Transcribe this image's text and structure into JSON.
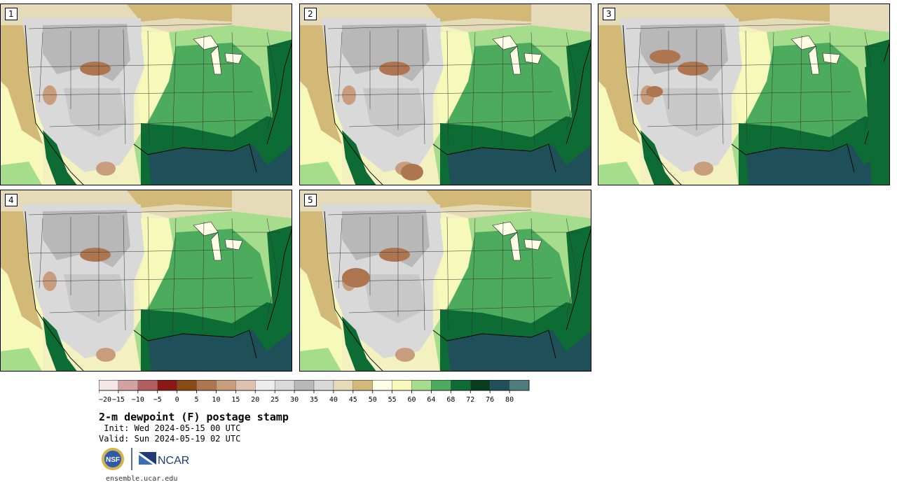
{
  "panels": [
    {
      "label": "1"
    },
    {
      "label": "2"
    },
    {
      "label": "3"
    },
    {
      "label": "4"
    },
    {
      "label": "5"
    }
  ],
  "colorbar": {
    "ticks": [
      "−20",
      "−15",
      "−10",
      "−5",
      "0",
      "5",
      "10",
      "15",
      "20",
      "25",
      "30",
      "35",
      "40",
      "45",
      "50",
      "55",
      "60",
      "64",
      "68",
      "72",
      "76",
      "80"
    ],
    "colors": [
      "#f5e7e7",
      "#d4a1a1",
      "#b35f5f",
      "#8c1717",
      "#8a4a14",
      "#ad7651",
      "#c89d7e",
      "#dfc2ae",
      "#ececec",
      "#dadada",
      "#b8b8b8",
      "#d9d9d9",
      "#e6dbb9",
      "#d2b978",
      "#fefde6",
      "#f6f9b9",
      "#a6dd8c",
      "#4cab5c",
      "#0c6c33",
      "#073e1e",
      "#1f4f59",
      "#4f7d7e"
    ]
  },
  "title": "2-m dewpoint (F) postage stamp",
  "init": " Init: Wed 2024-05-15 00 UTC",
  "valid": "Valid: Sun 2024-05-19 02 UTC",
  "logos": {
    "nsf": "NSF",
    "ncar": "NCAR"
  },
  "site": "ensemble.ucar.edu"
}
